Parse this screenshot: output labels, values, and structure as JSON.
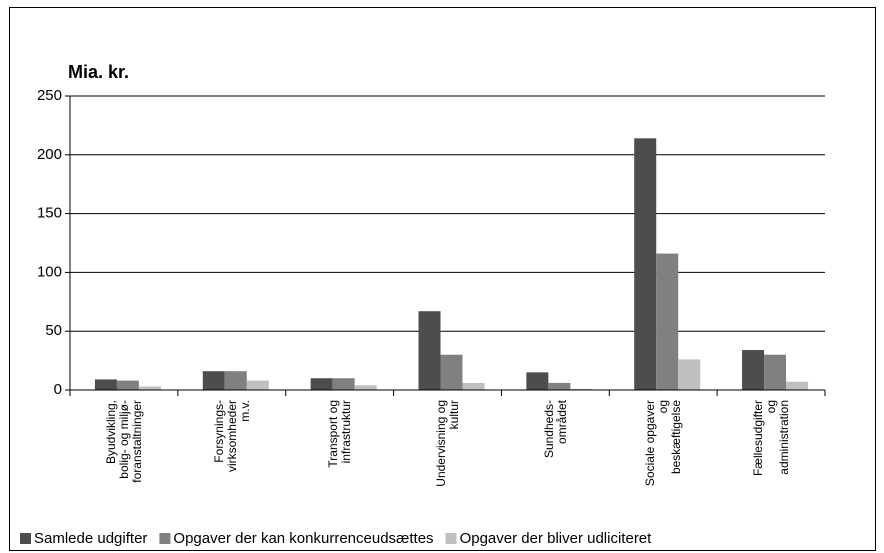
{
  "chart_data": {
    "type": "bar",
    "ylabel": "Mia. kr.",
    "categories": [
      "Byudvikling,\nbolig- og miljø-\nforanstaltninger",
      "Forsynings-\nvirksomheder\nm.v.",
      "Transport og\ninfrastruktur",
      "Undervisning og\nkultur",
      "Sundheds-\nområdet",
      "Sociale opgaver\nog\nbeskæftigelse",
      "Fællesudgifter\nog\nadministration"
    ],
    "series": [
      {
        "name": "Samlede udgifter",
        "color": "#4d4d4d",
        "values": [
          9,
          16,
          10,
          67,
          15,
          214,
          34
        ]
      },
      {
        "name": "Opgaver der kan konkurrenceudsættes",
        "color": "#808080",
        "values": [
          8,
          16,
          10,
          30,
          6,
          116,
          30
        ]
      },
      {
        "name": "Opgaver der bliver udliciteret",
        "color": "#bfbfbf",
        "values": [
          3,
          8,
          4,
          6,
          1,
          26,
          7
        ]
      }
    ],
    "ylim": [
      0,
      250
    ],
    "yticks": [
      0,
      50,
      100,
      150,
      200,
      250
    ],
    "grid": true,
    "legend": "bottom"
  }
}
